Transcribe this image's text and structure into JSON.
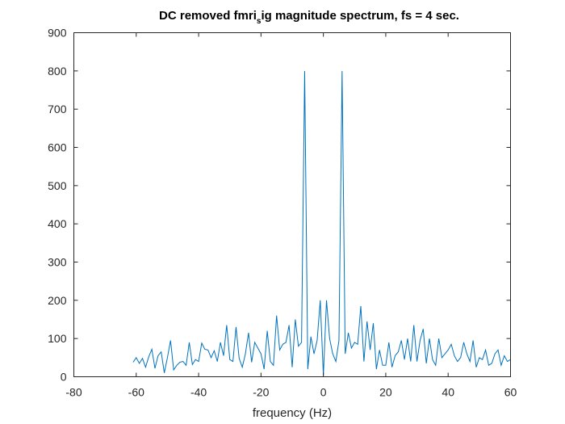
{
  "chart_data": {
    "type": "line",
    "title": {
      "before_sub": "DC removed fmri",
      "subscript": "s",
      "after_sub": "ig magnitude spectrum, fs = 4 sec."
    },
    "xlabel": "frequency (Hz)",
    "ylabel": "",
    "xlim": [
      -80,
      60
    ],
    "ylim": [
      0,
      900
    ],
    "x_ticks": [
      -80,
      -60,
      -40,
      -20,
      0,
      20,
      40,
      60
    ],
    "y_ticks": [
      0,
      100,
      200,
      300,
      400,
      500,
      600,
      700,
      800,
      900
    ],
    "x_tick_labels": [
      "-80",
      "-60",
      "-40",
      "-20",
      "0",
      "20",
      "40",
      "60"
    ],
    "y_tick_labels": [
      "0",
      "100",
      "200",
      "300",
      "400",
      "500",
      "600",
      "700",
      "800",
      "900"
    ],
    "grid": false,
    "box": true,
    "line_color": "#0072BD",
    "series": [
      {
        "x": [
          -61,
          -60,
          -59,
          -58,
          -57,
          -56,
          -55,
          -54,
          -53,
          -52,
          -51,
          -50,
          -49,
          -48,
          -47,
          -46,
          -45,
          -44,
          -43,
          -42,
          -41,
          -40,
          -39,
          -38,
          -37,
          -36,
          -35,
          -34,
          -33,
          -32,
          -31,
          -30,
          -29,
          -28,
          -27,
          -26,
          -25,
          -24,
          -23,
          -22,
          -21,
          -20,
          -19,
          -18,
          -17,
          -16,
          -15,
          -14,
          -13,
          -12,
          -11,
          -10,
          -9,
          -8,
          -7,
          -6,
          -5,
          -4,
          -3,
          -2,
          -1,
          0,
          1,
          2,
          3,
          4,
          5,
          6,
          7,
          8,
          9,
          10,
          11,
          12,
          13,
          14,
          15,
          16,
          17,
          18,
          19,
          20,
          21,
          22,
          23,
          24,
          25,
          26,
          27,
          28,
          29,
          30,
          31,
          32,
          33,
          34,
          35,
          36,
          37,
          38,
          39,
          40,
          41,
          42,
          43,
          44,
          45,
          46,
          47,
          48,
          49,
          50,
          51,
          52,
          53,
          54,
          55,
          56,
          57,
          58,
          59,
          60
        ],
        "values": [
          38,
          50,
          35,
          48,
          25,
          52,
          72,
          22,
          55,
          65,
          10,
          50,
          95,
          18,
          30,
          38,
          40,
          30,
          90,
          32,
          45,
          40,
          88,
          72,
          70,
          50,
          68,
          40,
          90,
          55,
          135,
          45,
          40,
          130,
          48,
          25,
          60,
          115,
          38,
          90,
          75,
          60,
          20,
          120,
          40,
          30,
          160,
          70,
          85,
          90,
          135,
          25,
          150,
          80,
          90,
          800,
          20,
          105,
          60,
          95,
          200,
          3,
          200,
          100,
          60,
          40,
          95,
          800,
          60,
          115,
          75,
          90,
          85,
          185,
          40,
          145,
          70,
          140,
          20,
          70,
          30,
          30,
          90,
          25,
          55,
          65,
          95,
          45,
          100,
          40,
          135,
          40,
          95,
          125,
          35,
          100,
          45,
          30,
          100,
          50,
          60,
          70,
          85,
          55,
          40,
          50,
          90,
          60,
          40,
          95,
          25,
          50,
          45,
          70,
          30,
          35,
          60,
          70,
          30,
          55,
          40,
          45
        ]
      }
    ]
  }
}
